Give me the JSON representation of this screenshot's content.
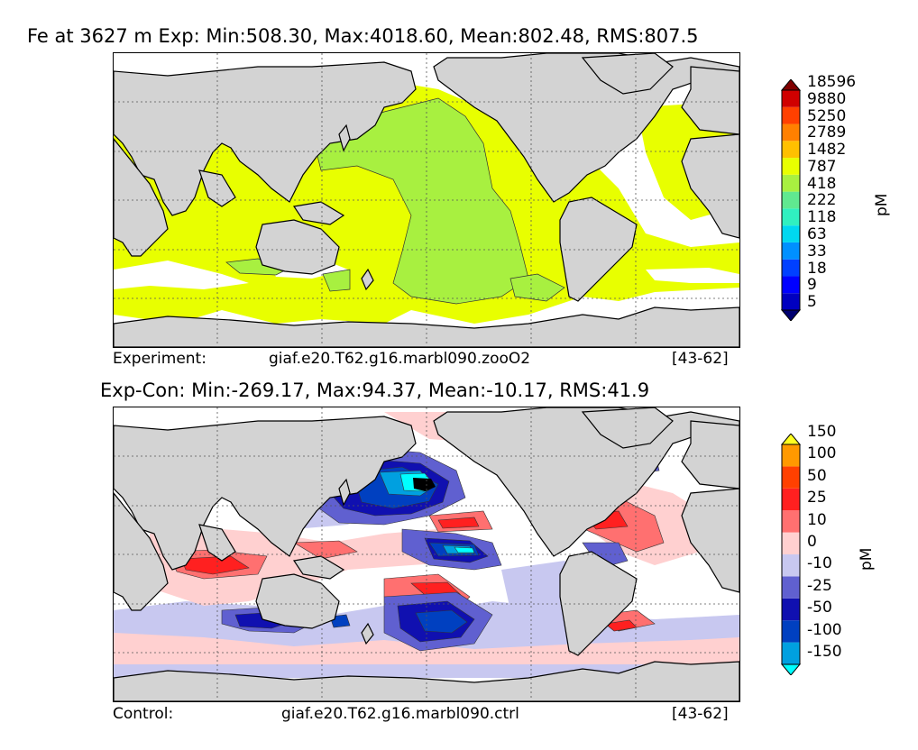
{
  "top": {
    "title": "Fe at 3627 m Exp: Min:508.30, Max:4018.60, Mean:802.48, RMS:807.5",
    "footer_label": "Experiment:",
    "footer_case": "giaf.e20.T62.g16.marbl090.zooO2",
    "footer_years": "[43-62]",
    "units": "pM",
    "levels": [
      "5",
      "9",
      "18",
      "33",
      "63",
      "118",
      "222",
      "418",
      "787",
      "1482",
      "2789",
      "5250",
      "9880",
      "18596"
    ],
    "colors": [
      "#000070",
      "#0000c0",
      "#0000ff",
      "#0040ff",
      "#0090ff",
      "#00d8f0",
      "#30f0c0",
      "#60e890",
      "#a8f040",
      "#e8ff00",
      "#ffc000",
      "#ff8000",
      "#ff4000",
      "#d00000",
      "#800000"
    ]
  },
  "bottom": {
    "title": "Exp-Con: Min:-269.17, Max:94.37, Mean:-10.17, RMS:41.9",
    "footer_label": "Control:",
    "footer_case": "giaf.e20.T62.g16.marbl090.ctrl",
    "footer_years": "[43-62]",
    "units": "pM",
    "levels": [
      "-150",
      "-100",
      "-50",
      "-25",
      "-10",
      "0",
      "10",
      "25",
      "50",
      "100",
      "150"
    ],
    "colors": [
      "#00ffff",
      "#00a0e0",
      "#0040c0",
      "#1010b0",
      "#6060d0",
      "#c8c8f0",
      "#ffd0d0",
      "#ff7070",
      "#ff2020",
      "#ff4000",
      "#ff9900",
      "#ffff20"
    ]
  }
}
